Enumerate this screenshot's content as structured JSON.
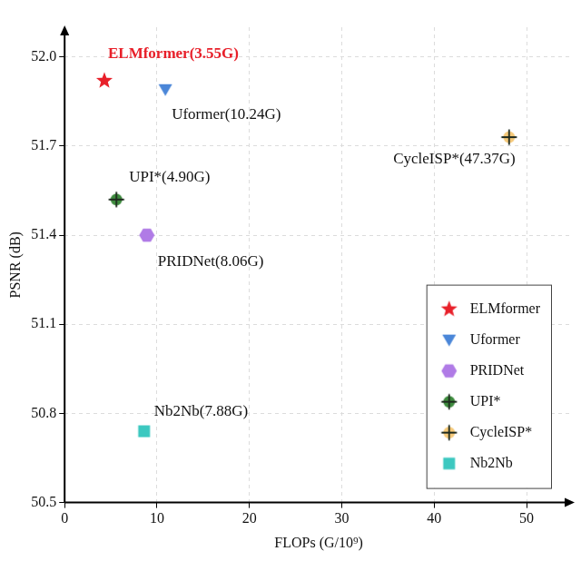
{
  "chart_data": {
    "type": "scatter",
    "x_label": "FLOPs (G/10⁹)",
    "y_label": "PSNR (dB)",
    "xlim": [
      0,
      55
    ],
    "xticks": [
      0,
      10,
      20,
      30,
      40,
      50
    ],
    "ylim": [
      50.5,
      52.1
    ],
    "yticks": [
      50.5,
      50.8,
      51.1,
      51.4,
      51.7,
      {
        "value": 52,
        "label": "52.0"
      }
    ],
    "grid": true,
    "legend": "lower right",
    "series": [
      {
        "name": "ELMformer",
        "color": "#e8202a",
        "marker": "star",
        "x": [
          4.3
        ],
        "values": [
          51.92
        ],
        "annotation": "ELMformer(3.55G)"
      },
      {
        "name": "Uformer",
        "color": "#4a86d8",
        "marker": "triangle_down",
        "x": [
          10.9
        ],
        "values": [
          51.89
        ],
        "annotation": "Uformer(10.24G)"
      },
      {
        "name": "PRIDNet",
        "color": "#b07be6",
        "marker": "hexagon",
        "x": [
          8.9
        ],
        "values": [
          51.4
        ],
        "annotation": "PRIDNet(8.06G)"
      },
      {
        "name": "UPI*",
        "color": "#3d8a3d",
        "marker": "plus_circle",
        "x": [
          5.6
        ],
        "values": [
          51.52
        ],
        "annotation": "UPI*(4.90G)"
      },
      {
        "name": "CycleISP*",
        "color": "#f5c97a",
        "marker": "plus_circle",
        "x": [
          48.1
        ],
        "values": [
          51.73
        ],
        "annotation": "CycleISP*(47.37G)"
      },
      {
        "name": "Nb2Nb",
        "color": "#3cc8c0",
        "marker": "square",
        "x": [
          8.6
        ],
        "values": [
          50.74
        ],
        "annotation": "Nb2Nb(7.88G)"
      }
    ]
  }
}
